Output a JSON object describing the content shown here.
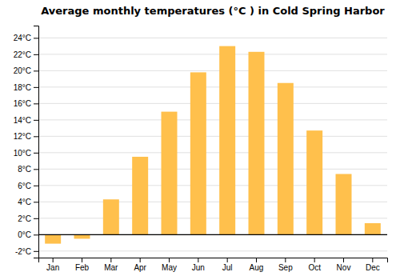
{
  "chart_data": {
    "type": "bar",
    "title": "Average monthly temperatures (°C ) in Cold Spring Harbor",
    "categories": [
      "Jan",
      "Feb",
      "Mar",
      "Apr",
      "May",
      "Jun",
      "Jul",
      "Aug",
      "Sep",
      "Oct",
      "Nov",
      "Dec"
    ],
    "values": [
      -1.1,
      -0.5,
      4.3,
      9.5,
      15.0,
      19.8,
      23.0,
      22.3,
      18.5,
      12.7,
      7.4,
      1.4
    ],
    "color": "#FFC04C",
    "ylim": [
      -2.8,
      25.5
    ],
    "yticks": [
      {
        "value": -2,
        "label": "-2°C"
      },
      {
        "value": 0,
        "label": "0°C"
      },
      {
        "value": 2,
        "label": "2°C"
      },
      {
        "value": 4,
        "label": "4°C"
      },
      {
        "value": 6,
        "label": "6°C"
      },
      {
        "value": 8,
        "label": "8°C"
      },
      {
        "value": 10,
        "label": "10°C"
      },
      {
        "value": 12,
        "label": "12°C"
      },
      {
        "value": 14,
        "label": "14°C"
      },
      {
        "value": 16,
        "label": "16°C"
      },
      {
        "value": 18,
        "label": "18°C"
      },
      {
        "value": 20,
        "label": "20°C"
      },
      {
        "value": 22,
        "label": "22°C"
      },
      {
        "value": 24,
        "label": "24°C"
      }
    ],
    "grid": true
  }
}
